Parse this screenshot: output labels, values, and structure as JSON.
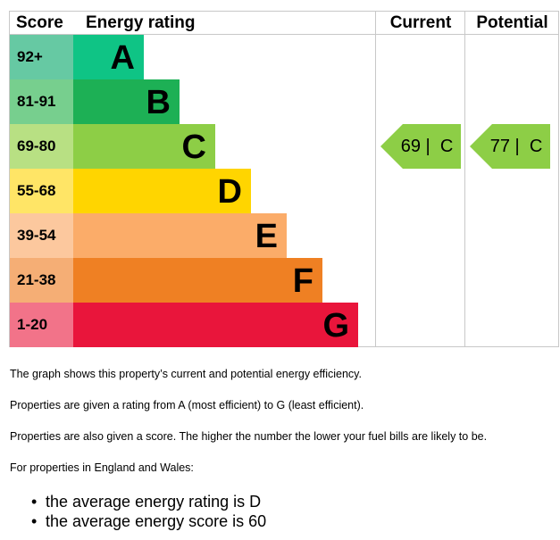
{
  "chart_data": {
    "type": "bar",
    "headers": {
      "score": "Score",
      "rating": "Energy rating",
      "current": "Current",
      "potential": "Potential"
    },
    "bands": [
      {
        "score": "92+",
        "letter": "A",
        "color": "#0fc485",
        "score_bg": "#66c9a3",
        "letter_color": "#000000"
      },
      {
        "score": "81-91",
        "letter": "B",
        "color": "#1db055",
        "score_bg": "#77cf8e",
        "letter_color": "#000000"
      },
      {
        "score": "69-80",
        "letter": "C",
        "color": "#8dce46",
        "score_bg": "#b8e083",
        "letter_color": "#000000"
      },
      {
        "score": "55-68",
        "letter": "D",
        "color": "#ffd500",
        "score_bg": "#ffe566",
        "letter_color": "#000000"
      },
      {
        "score": "39-54",
        "letter": "E",
        "color": "#fbac69",
        "score_bg": "#fcc89e",
        "letter_color": "#000000"
      },
      {
        "score": "21-38",
        "letter": "F",
        "color": "#ef8023",
        "score_bg": "#f5ae75",
        "letter_color": "#000000"
      },
      {
        "score": "1-20",
        "letter": "G",
        "color": "#e9153b",
        "score_bg": "#f27389",
        "letter_color": "#000000"
      }
    ],
    "current": {
      "score": 69,
      "rating": "C",
      "label": "69 |  C",
      "color": "#8dce46"
    },
    "potential": {
      "score": 77,
      "rating": "C",
      "label": "77 |  C",
      "color": "#8dce46"
    }
  },
  "notes": [
    "The graph shows this property’s current and potential energy efficiency.",
    "Properties are given a rating from A (most efficient) to G (least efficient).",
    "Properties are also given a score. The higher the number the lower your fuel bills are likely to be.",
    "For properties in England and Wales:"
  ],
  "averages": [
    "the average energy rating is D",
    "the average energy score is 60"
  ]
}
